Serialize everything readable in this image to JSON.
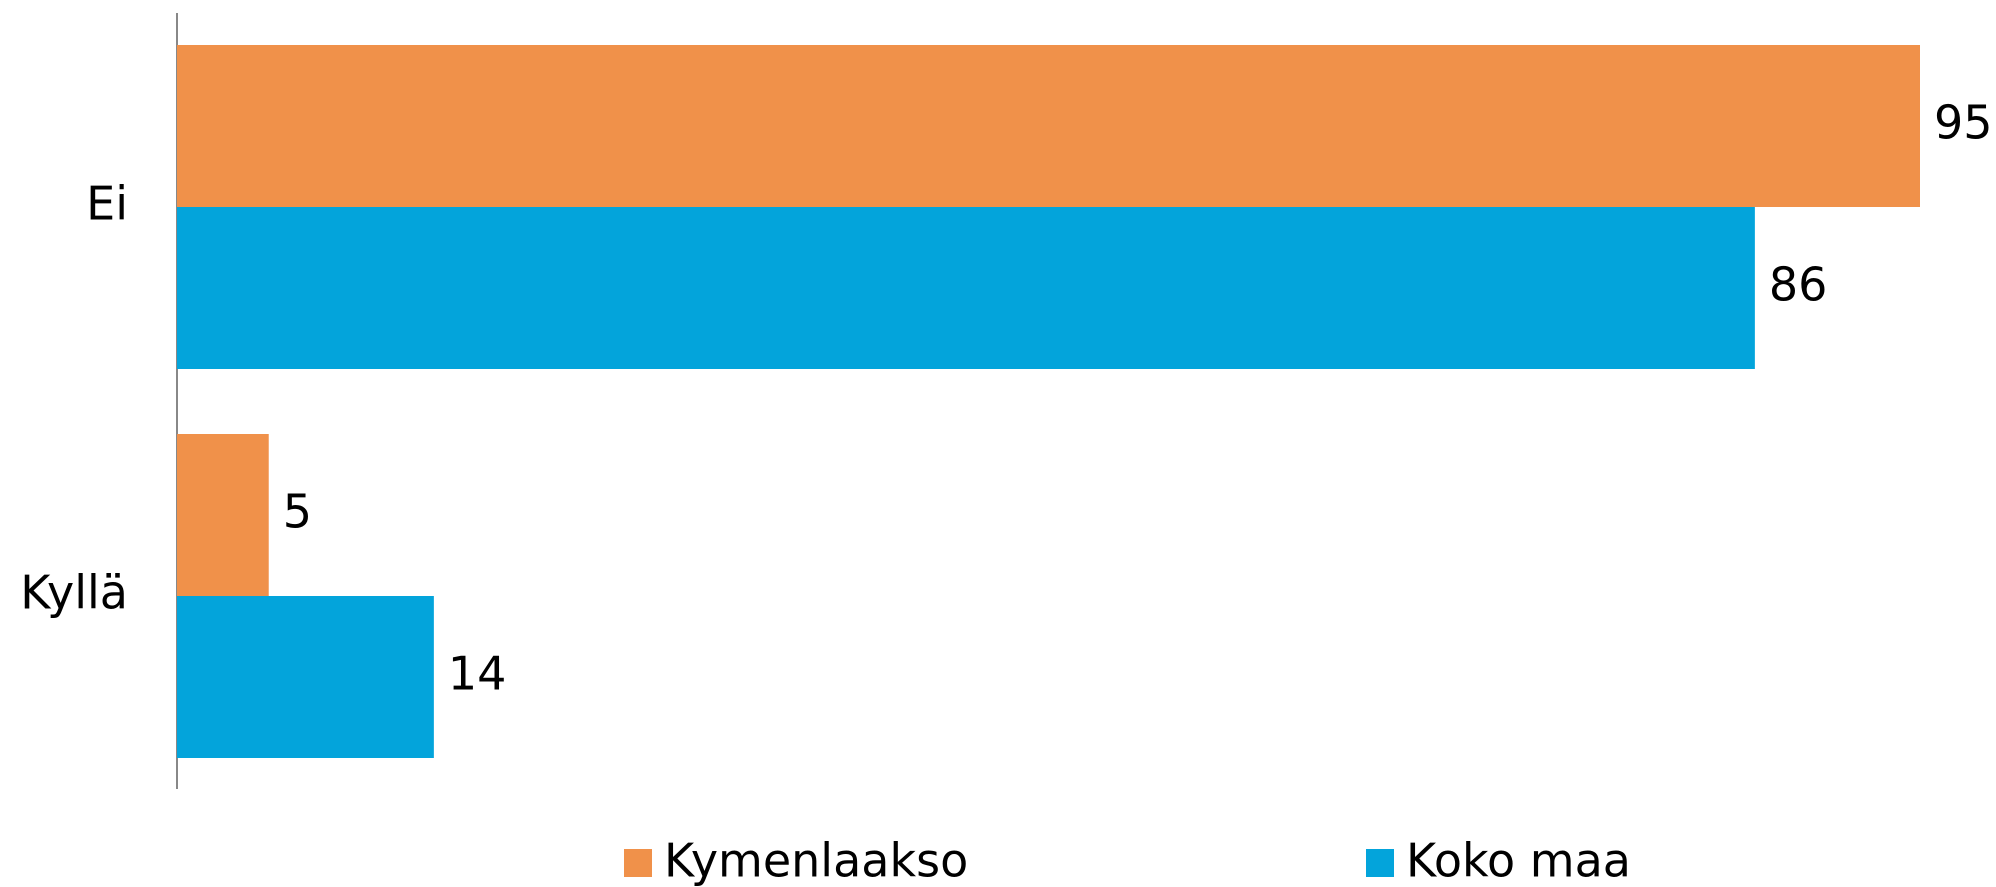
{
  "chart_data": {
    "type": "hbar",
    "categories": [
      "Ei",
      "Kyllä"
    ],
    "series": [
      {
        "name": "Kymenlaakso",
        "color": "#f0914a",
        "values": [
          95,
          5
        ]
      },
      {
        "name": "Koko maa",
        "color": "#03a4db",
        "values": [
          86,
          14
        ]
      }
    ],
    "legend": "bottom"
  }
}
